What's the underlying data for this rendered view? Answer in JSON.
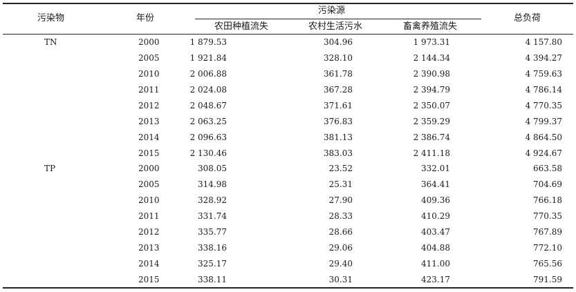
{
  "header": {
    "pollutant": "污染物",
    "year": "年份",
    "source_group": "污染源",
    "farm": "农田种植流失",
    "rural": "农村生活污水",
    "livestock": "畜禽养殖流失",
    "total": "总负荷"
  },
  "rows": [
    {
      "pollutant": "TN",
      "year": "2000",
      "farm": "1 879.53",
      "rural": "304.96",
      "livestock": "1 973.31",
      "total": "4 157.80"
    },
    {
      "pollutant": "",
      "year": "2005",
      "farm": "1 921.84",
      "rural": "328.10",
      "livestock": "2 144.34",
      "total": "4 394.27"
    },
    {
      "pollutant": "",
      "year": "2010",
      "farm": "2 006.88",
      "rural": "361.78",
      "livestock": "2 390.98",
      "total": "4 759.63"
    },
    {
      "pollutant": "",
      "year": "2011",
      "farm": "2 024.08",
      "rural": "367.28",
      "livestock": "2 394.79",
      "total": "4 786.14"
    },
    {
      "pollutant": "",
      "year": "2012",
      "farm": "2 048.67",
      "rural": "371.61",
      "livestock": "2 350.07",
      "total": "4 770.35"
    },
    {
      "pollutant": "",
      "year": "2013",
      "farm": "2 063.25",
      "rural": "376.83",
      "livestock": "2 359.29",
      "total": "4 799.37"
    },
    {
      "pollutant": "",
      "year": "2014",
      "farm": "2 096.63",
      "rural": "381.13",
      "livestock": "2 386.74",
      "total": "4 864.50"
    },
    {
      "pollutant": "",
      "year": "2015",
      "farm": "2 130.46",
      "rural": "383.03",
      "livestock": "2 411.18",
      "total": "4 924.67"
    },
    {
      "pollutant": "TP",
      "year": "2000",
      "farm": "308.05",
      "rural": "23.52",
      "livestock": "332.01",
      "total": "663.58"
    },
    {
      "pollutant": "",
      "year": "2005",
      "farm": "314.98",
      "rural": "25.31",
      "livestock": "364.41",
      "total": "704.69"
    },
    {
      "pollutant": "",
      "year": "2010",
      "farm": "328.92",
      "rural": "27.90",
      "livestock": "409.36",
      "total": "766.18"
    },
    {
      "pollutant": "",
      "year": "2011",
      "farm": "331.74",
      "rural": "28.33",
      "livestock": "410.29",
      "total": "770.35"
    },
    {
      "pollutant": "",
      "year": "2012",
      "farm": "335.77",
      "rural": "28.66",
      "livestock": "403.47",
      "total": "767.89"
    },
    {
      "pollutant": "",
      "year": "2013",
      "farm": "338.16",
      "rural": "29.06",
      "livestock": "404.88",
      "total": "772.10"
    },
    {
      "pollutant": "",
      "year": "2014",
      "farm": "325.17",
      "rural": "29.40",
      "livestock": "411.00",
      "total": "765.56"
    },
    {
      "pollutant": "",
      "year": "2015",
      "farm": "338.11",
      "rural": "30.31",
      "livestock": "423.17",
      "total": "791.59"
    }
  ]
}
